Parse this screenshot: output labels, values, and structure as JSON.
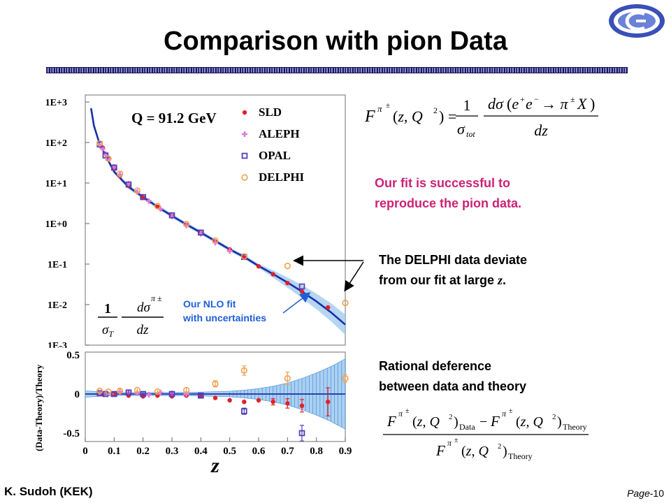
{
  "slide": {
    "title": "Comparison with pion Data",
    "author": "K. Sudoh (KEK)",
    "page_prefix": "Page",
    "page_number": "-10"
  },
  "annotations": {
    "fit_success_line1": "Our fit is successful to",
    "fit_success_line2": "reproduce the pion data.",
    "delphi_line1": "The DELPHI data deviate",
    "delphi_line2_prefix": "from our fit at large ",
    "delphi_line2_var": "z",
    "delphi_line2_suffix": ".",
    "rational_line1": "Rational deference",
    "rational_line2": "between data and theory",
    "nlo_line1": "Our NLO fit",
    "nlo_line2": "with uncertainties"
  },
  "colors": {
    "title": "#000000",
    "pink_text": "#cc2277",
    "nlo_label": "#1f5fd6",
    "theory_line": "#1a2ea8",
    "band": "#9cc8ee",
    "SLD": "#e0202a",
    "ALEPH": "#e07ad8",
    "OPAL": "#5040b8",
    "DELPHI": "#f0a050"
  },
  "chart_data": [
    {
      "type": "scatter",
      "title": "Q = 91.2 GeV",
      "ylabel_fraction": "1/σ_T dσ^{π±}/dz",
      "yscale": "log",
      "ylim": [
        0.001,
        1000
      ],
      "xlim": [
        0,
        0.9
      ],
      "y_tick_labels": [
        "1E+3",
        "1E+2",
        "1E+1",
        "1E+0",
        "1E-1",
        "1E-2",
        "1E-3"
      ],
      "legend_position": "top-right",
      "legend": [
        "SLD",
        "ALEPH",
        "OPAL",
        "DELPHI"
      ],
      "theory": {
        "x": [
          0.02,
          0.03,
          0.05,
          0.08,
          0.1,
          0.15,
          0.2,
          0.25,
          0.3,
          0.35,
          0.4,
          0.45,
          0.5,
          0.55,
          0.6,
          0.65,
          0.7,
          0.75,
          0.8,
          0.85,
          0.9
        ],
        "y": [
          700,
          260,
          90,
          35,
          19,
          8,
          4.5,
          2.6,
          1.55,
          0.95,
          0.6,
          0.37,
          0.23,
          0.15,
          0.09,
          0.057,
          0.035,
          0.021,
          0.012,
          0.0065,
          0.0032
        ]
      },
      "series": [
        {
          "name": "SLD",
          "x": [
            0.06,
            0.08,
            0.1,
            0.12,
            0.15,
            0.2,
            0.25,
            0.3,
            0.35,
            0.4,
            0.45,
            0.5,
            0.55,
            0.6,
            0.65,
            0.7,
            0.75,
            0.84
          ],
          "y": [
            75,
            42,
            23,
            15,
            8.5,
            4.4,
            2.6,
            1.55,
            0.93,
            0.58,
            0.36,
            0.23,
            0.145,
            0.088,
            0.056,
            0.034,
            0.021,
            0.0085
          ]
        },
        {
          "name": "ALEPH",
          "x": [
            0.05,
            0.06,
            0.07,
            0.08,
            0.1,
            0.12,
            0.15,
            0.18,
            0.22,
            0.26,
            0.3,
            0.35,
            0.4,
            0.45,
            0.5
          ],
          "y": [
            85,
            70,
            52,
            40,
            25,
            16,
            9.5,
            6,
            3.6,
            2.3,
            1.5,
            0.9,
            0.56,
            0.34,
            0.21
          ]
        },
        {
          "name": "OPAL",
          "x": [
            0.05,
            0.07,
            0.1,
            0.15,
            0.2,
            0.3,
            0.4,
            0.55,
            0.75
          ],
          "y": [
            90,
            48,
            24,
            9.2,
            4.5,
            1.6,
            0.6,
            0.15,
            0.028
          ]
        },
        {
          "name": "DELPHI",
          "x": [
            0.05,
            0.08,
            0.12,
            0.18,
            0.25,
            0.35,
            0.45,
            0.55,
            0.7,
            0.9
          ],
          "y": [
            95,
            40,
            17,
            6.5,
            2.7,
            0.97,
            0.38,
            0.155,
            0.09,
            0.011
          ]
        }
      ]
    },
    {
      "type": "scatter",
      "ylabel": "(Data-Theory)/Theory",
      "xlabel": "z",
      "ylim": [
        -0.5,
        0.5
      ],
      "xlim": [
        0,
        0.9
      ],
      "x_tick_labels": [
        "0",
        "0.1",
        "0.2",
        "0.3",
        "0.4",
        "0.5",
        "0.6",
        "0.7",
        "0.8",
        "0.9"
      ],
      "y_tick_labels": [
        "0.5",
        "0",
        "-0.5"
      ],
      "band": {
        "x": [
          0.0,
          0.1,
          0.2,
          0.3,
          0.4,
          0.5,
          0.55,
          0.6,
          0.65,
          0.7,
          0.75,
          0.8,
          0.85,
          0.9
        ],
        "half_width": [
          0.04,
          0.02,
          0.02,
          0.02,
          0.025,
          0.035,
          0.05,
          0.07,
          0.1,
          0.14,
          0.2,
          0.27,
          0.35,
          0.45
        ]
      },
      "series": [
        {
          "name": "SLD",
          "x": [
            0.06,
            0.1,
            0.15,
            0.2,
            0.25,
            0.3,
            0.35,
            0.4,
            0.45,
            0.5,
            0.55,
            0.6,
            0.65,
            0.7,
            0.75,
            0.84
          ],
          "y": [
            0.0,
            0.0,
            -0.02,
            -0.03,
            -0.02,
            -0.03,
            -0.02,
            -0.03,
            -0.05,
            -0.08,
            -0.1,
            -0.08,
            -0.1,
            -0.12,
            -0.15,
            -0.1
          ],
          "err": [
            0.01,
            0.01,
            0.01,
            0.01,
            0.02,
            0.02,
            0.02,
            0.02,
            0.02,
            0.03,
            0.03,
            0.03,
            0.04,
            0.06,
            0.08,
            0.18
          ]
        },
        {
          "name": "ALEPH",
          "x": [
            0.05,
            0.07,
            0.09,
            0.12,
            0.15,
            0.18,
            0.22,
            0.26,
            0.3,
            0.35
          ],
          "y": [
            0.02,
            0.01,
            0.0,
            0.03,
            0.02,
            0.01,
            -0.01,
            0.02,
            0.01,
            0.0
          ],
          "err": [
            0.01,
            0.01,
            0.01,
            0.01,
            0.01,
            0.01,
            0.02,
            0.02,
            0.02,
            0.02
          ]
        },
        {
          "name": "OPAL",
          "x": [
            0.05,
            0.07,
            0.1,
            0.15,
            0.2,
            0.3,
            0.4,
            0.55,
            0.75
          ],
          "y": [
            0.01,
            0.0,
            0.0,
            0.02,
            0.0,
            0.0,
            -0.02,
            -0.22,
            -0.5
          ],
          "err": [
            0.01,
            0.01,
            0.01,
            0.02,
            0.02,
            0.02,
            0.03,
            0.04,
            0.1
          ]
        },
        {
          "name": "DELPHI",
          "x": [
            0.05,
            0.08,
            0.12,
            0.18,
            0.25,
            0.35,
            0.45,
            0.55,
            0.7,
            0.9
          ],
          "y": [
            0.04,
            0.03,
            0.04,
            0.05,
            0.03,
            0.05,
            0.13,
            0.3,
            0.2,
            0.2
          ],
          "err": [
            0.01,
            0.01,
            0.02,
            0.02,
            0.02,
            0.03,
            0.04,
            0.06,
            0.08,
            0.05
          ]
        }
      ]
    }
  ]
}
